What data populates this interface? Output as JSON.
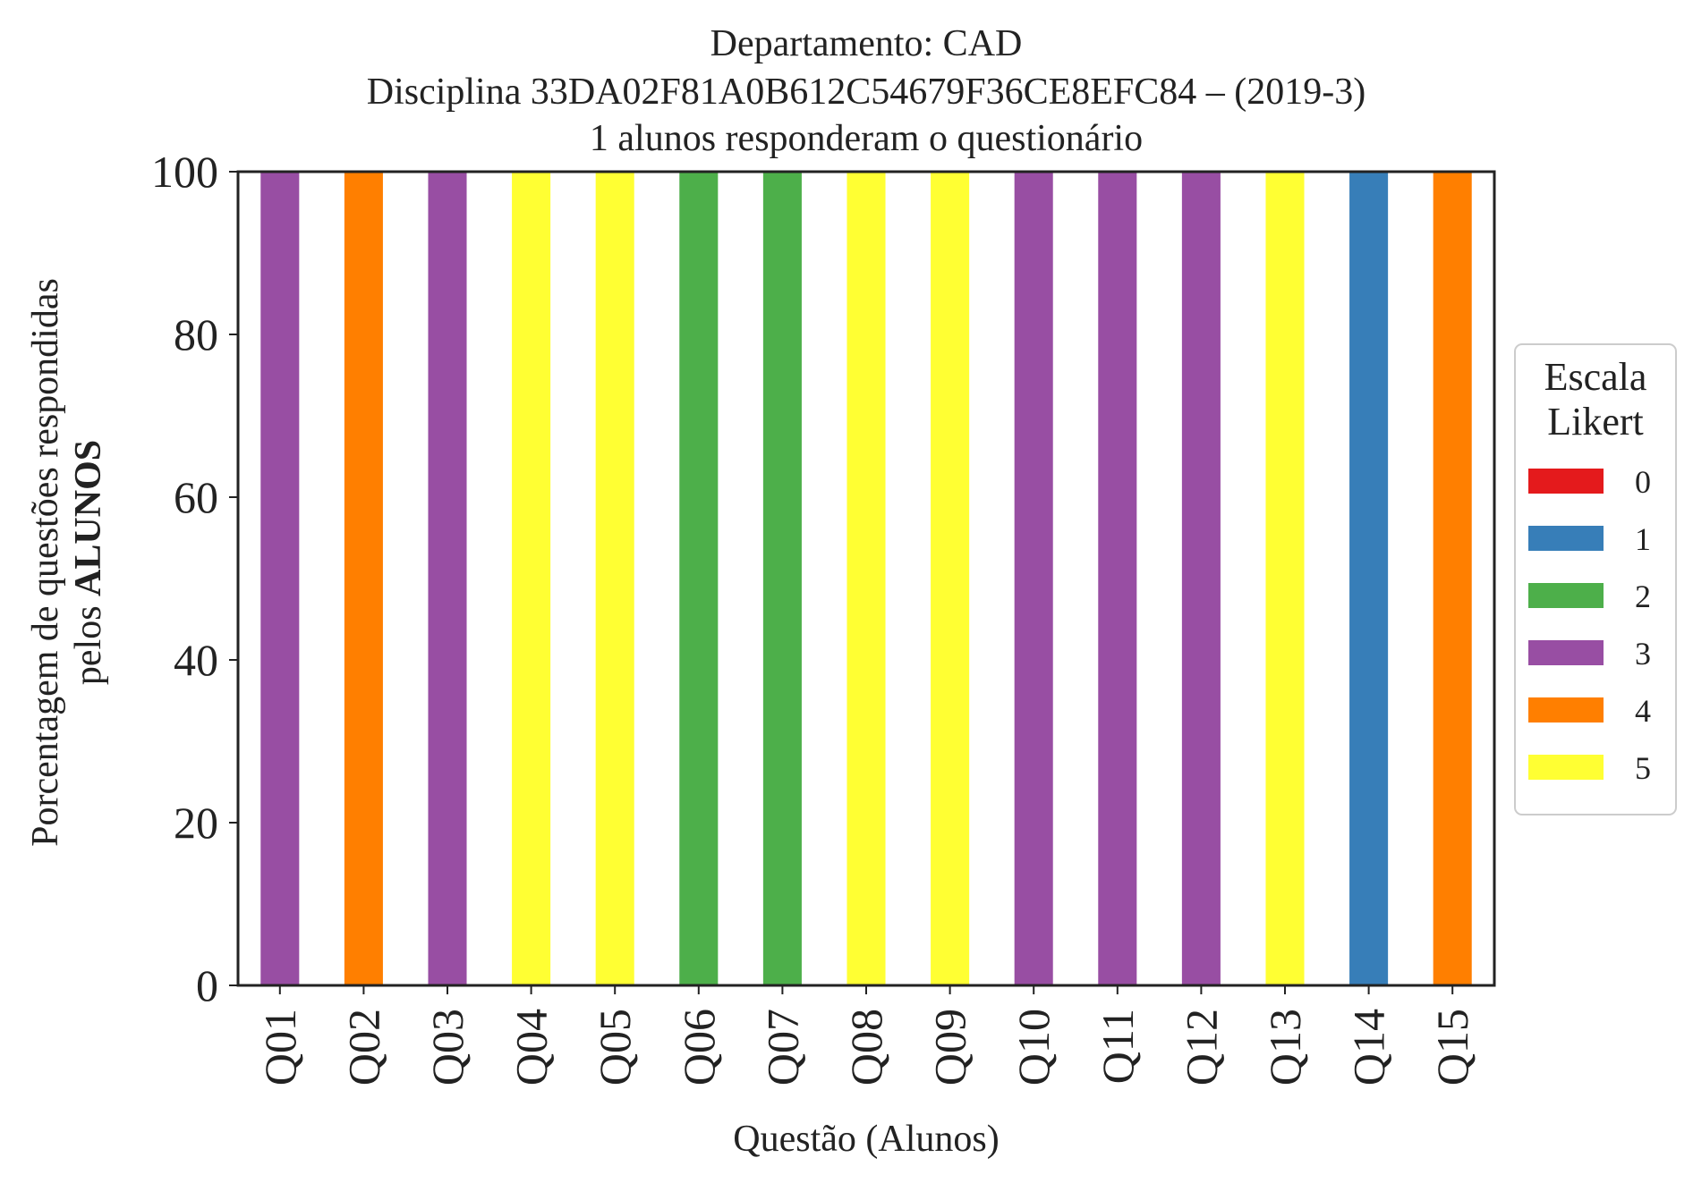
{
  "chart_data": {
    "type": "bar",
    "stacked": true,
    "title_lines": [
      "Departamento: CAD",
      "Disciplina 33DA02F81A0B612C54679F36CE8EFC84 – (2019-3)",
      "1 alunos responderam o questionário"
    ],
    "xlabel": "Questão (Alunos)",
    "ylabel_line1": "Porcentagem de questões respondidas",
    "ylabel_line2_prefix": "pelos ",
    "ylabel_line2_bold": "ALUNOS",
    "ylim": [
      0,
      100
    ],
    "yticks": [
      0,
      20,
      40,
      60,
      80,
      100
    ],
    "categories": [
      "Q01",
      "Q02",
      "Q03",
      "Q04",
      "Q05",
      "Q06",
      "Q07",
      "Q08",
      "Q09",
      "Q10",
      "Q11",
      "Q12",
      "Q13",
      "Q14",
      "Q15"
    ],
    "series": [
      {
        "name": "0",
        "color": "#e41a1c",
        "values": [
          0,
          0,
          0,
          0,
          0,
          0,
          0,
          0,
          0,
          0,
          0,
          0,
          0,
          0,
          0
        ]
      },
      {
        "name": "1",
        "color": "#377eb8",
        "values": [
          0,
          0,
          0,
          0,
          0,
          0,
          0,
          0,
          0,
          0,
          0,
          0,
          0,
          100,
          0
        ]
      },
      {
        "name": "2",
        "color": "#4daf4a",
        "values": [
          0,
          0,
          0,
          0,
          0,
          100,
          100,
          0,
          0,
          0,
          0,
          0,
          0,
          0,
          0
        ]
      },
      {
        "name": "3",
        "color": "#984ea3",
        "values": [
          100,
          0,
          100,
          0,
          0,
          0,
          0,
          0,
          0,
          100,
          100,
          100,
          0,
          0,
          0
        ]
      },
      {
        "name": "4",
        "color": "#ff7f00",
        "values": [
          0,
          100,
          0,
          0,
          0,
          0,
          0,
          0,
          0,
          0,
          0,
          0,
          0,
          0,
          100
        ]
      },
      {
        "name": "5",
        "color": "#ffff33",
        "values": [
          0,
          0,
          0,
          100,
          100,
          0,
          0,
          100,
          100,
          0,
          0,
          0,
          100,
          0,
          0
        ]
      }
    ],
    "legend": {
      "title_lines": [
        "Escala",
        "Likert"
      ],
      "position": "right"
    },
    "grid": false
  }
}
